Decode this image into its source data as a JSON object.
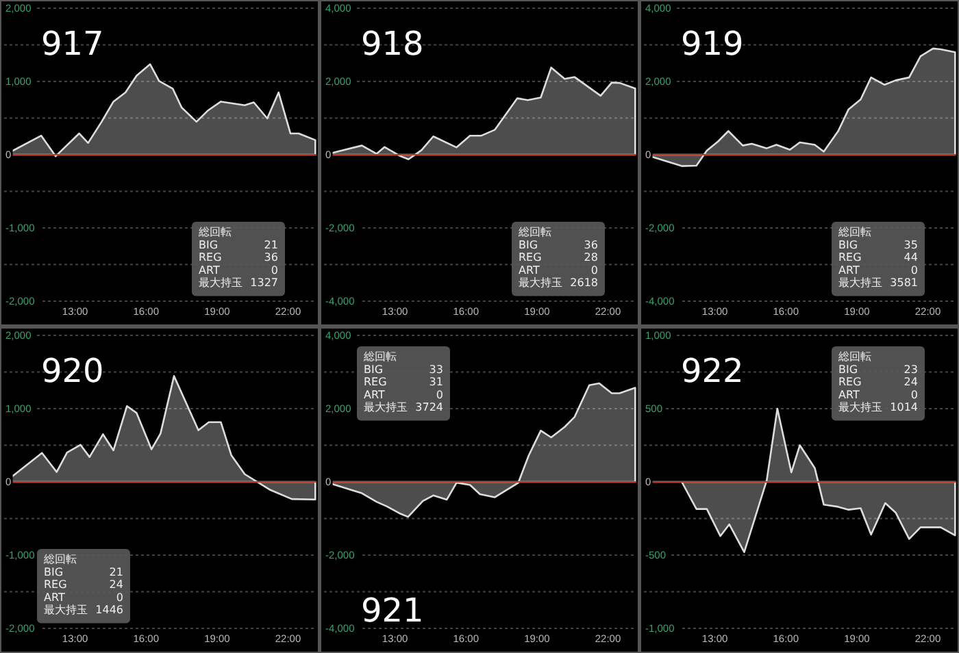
{
  "chart_data": [
    {
      "type": "area",
      "title": "917",
      "x": [
        10.05,
        11.57,
        12.18,
        13.17,
        13.55,
        14.12,
        14.62,
        15.13,
        15.6,
        16.17,
        16.55,
        17.13,
        17.5,
        18.13,
        18.6,
        19.16,
        20.17,
        20.55,
        21.12,
        21.6,
        22.1,
        22.45,
        23.15
      ],
      "values": [
        0,
        260,
        -20,
        290,
        160,
        450,
        725,
        850,
        1080,
        1235,
        1005,
        900,
        645,
        450,
        600,
        725,
        675,
        715,
        495,
        850,
        290,
        290,
        200
      ],
      "color": "#dddddd",
      "xlim": [
        10,
        23.2
      ],
      "xticks": [
        {
          "value": 13,
          "label": "13:00"
        },
        {
          "value": 16,
          "label": "16:00"
        },
        {
          "value": 19,
          "label": "19:00"
        },
        {
          "value": 22,
          "label": "22:00"
        }
      ],
      "ylim": [
        -2000,
        2000
      ],
      "yticks": [
        {
          "value": -2000,
          "label": "-2,000"
        },
        {
          "value": -1500,
          "label": null
        },
        {
          "value": -1000,
          "label": "-1,000"
        },
        {
          "value": -500,
          "label": null
        },
        0,
        {
          "value": 500,
          "label": null
        },
        {
          "value": 1000,
          "label": "1,000"
        },
        {
          "value": 1500,
          "label": null
        },
        {
          "value": 2000,
          "label": "2,000"
        }
      ],
      "grid": true,
      "ref_lines": [
        {
          "axis": "y",
          "value": 0,
          "color": "#c0392b"
        }
      ],
      "annotations": [
        "総回転",
        "BIG 21",
        "REG 36",
        "ART 0",
        "最大持玉 1327"
      ]
    },
    {
      "type": "area",
      "title": "918",
      "x": [
        10.05,
        11.6,
        12.22,
        12.56,
        13.23,
        13.57,
        14.12,
        14.62,
        15.6,
        16.17,
        16.65,
        17.22,
        18.17,
        18.61,
        19.16,
        19.6,
        20.17,
        20.59,
        21.69,
        22.16,
        22.49,
        23.15
      ],
      "values": [
        0,
        250,
        25,
        210,
        -40,
        -125,
        125,
        500,
        200,
        520,
        520,
        680,
        1540,
        1490,
        1560,
        2380,
        2070,
        2120,
        1610,
        1970,
        1960,
        1810
      ],
      "color": "#dddddd",
      "xlim": [
        10,
        23.2
      ],
      "xticks": [
        {
          "value": 13,
          "label": "13:00"
        },
        {
          "value": 16,
          "label": "16:00"
        },
        {
          "value": 19,
          "label": "19:00"
        },
        {
          "value": 22,
          "label": "22:00"
        }
      ],
      "ylim": [
        -4000,
        4000
      ],
      "yticks": [
        {
          "value": -4000,
          "label": "-4,000"
        },
        {
          "value": -3000,
          "label": null
        },
        {
          "value": -2000,
          "label": "-2,000"
        },
        {
          "value": -1000,
          "label": null
        },
        0,
        {
          "value": 1000,
          "label": null
        },
        {
          "value": 2000,
          "label": "2,000"
        },
        {
          "value": 3000,
          "label": null
        },
        {
          "value": 4000,
          "label": "4,000"
        }
      ],
      "grid": true,
      "ref_lines": [
        {
          "axis": "y",
          "value": 0,
          "color": "#c0392b"
        }
      ],
      "annotations": [
        "総回転",
        "BIG 36",
        "REG 28",
        "ART 0",
        "最大持玉 2618"
      ]
    },
    {
      "type": "area",
      "title": "919",
      "x": [
        10.05,
        11.6,
        12.22,
        12.66,
        13.13,
        13.57,
        14.18,
        14.56,
        15.19,
        15.6,
        16.17,
        16.59,
        17.22,
        17.6,
        18.21,
        18.65,
        19.16,
        19.6,
        20.17,
        20.64,
        21.21,
        21.69,
        22.22,
        22.54,
        23.15
      ],
      "values": [
        0,
        -310,
        -300,
        110,
        360,
        645,
        250,
        300,
        175,
        270,
        135,
        335,
        270,
        85,
        645,
        1240,
        1510,
        2110,
        1910,
        2030,
        2110,
        2690,
        2900,
        2880,
        2800
      ],
      "color": "#dddddd",
      "xlim": [
        10,
        23.2
      ],
      "xticks": [
        {
          "value": 13,
          "label": "13:00"
        },
        {
          "value": 16,
          "label": "16:00"
        },
        {
          "value": 19,
          "label": "19:00"
        },
        {
          "value": 22,
          "label": "22:00"
        }
      ],
      "ylim": [
        -4000,
        4000
      ],
      "yticks": [
        {
          "value": -4000,
          "label": "-4,000"
        },
        {
          "value": -3000,
          "label": null
        },
        {
          "value": -2000,
          "label": "-2,000"
        },
        {
          "value": -1000,
          "label": null
        },
        0,
        {
          "value": 1000,
          "label": null
        },
        {
          "value": 2000,
          "label": "2,000"
        },
        {
          "value": 3000,
          "label": null
        },
        {
          "value": 4000,
          "label": "4,000"
        }
      ],
      "grid": true,
      "ref_lines": [
        {
          "axis": "y",
          "value": 0,
          "color": "#c0392b"
        }
      ],
      "annotations": [
        "総回転",
        "BIG 35",
        "REG 44",
        "ART 0",
        "最大持玉 3581"
      ]
    },
    {
      "type": "area",
      "title": "920",
      "x": [
        10.05,
        11.6,
        12.22,
        12.66,
        13.23,
        13.61,
        14.18,
        14.62,
        15.19,
        15.6,
        16.23,
        16.61,
        17.18,
        18.21,
        18.65,
        19.16,
        19.6,
        20.17,
        21.25,
        22.16,
        23.15
      ],
      "values": [
        0,
        395,
        135,
        400,
        505,
        340,
        650,
        430,
        1035,
        940,
        445,
        660,
        1445,
        705,
        815,
        815,
        365,
        105,
        -110,
        -235,
        -240
      ],
      "color": "#dddddd",
      "xlim": [
        10,
        23.2
      ],
      "xticks": [
        {
          "value": 13,
          "label": "13:00"
        },
        {
          "value": 16,
          "label": "16:00"
        },
        {
          "value": 19,
          "label": "19:00"
        },
        {
          "value": 22,
          "label": "22:00"
        }
      ],
      "ylim": [
        -2000,
        2000
      ],
      "yticks": [
        {
          "value": -2000,
          "label": "-2,000"
        },
        {
          "value": -1500,
          "label": null
        },
        {
          "value": -1000,
          "label": "-1,000"
        },
        {
          "value": -500,
          "label": null
        },
        0,
        {
          "value": 500,
          "label": null
        },
        {
          "value": 1000,
          "label": "1,000"
        },
        {
          "value": 1500,
          "label": null
        },
        {
          "value": 2000,
          "label": "2,000"
        }
      ],
      "grid": true,
      "ref_lines": [
        {
          "axis": "y",
          "value": 0,
          "color": "#c0392b"
        }
      ],
      "annotations": [
        "総回転",
        "BIG 21",
        "REG 24",
        "ART 0",
        "最大持玉 1446"
      ]
    },
    {
      "type": "area",
      "title": "921",
      "x": [
        10.05,
        11.6,
        12.22,
        12.66,
        13.23,
        13.55,
        14.18,
        14.62,
        15.19,
        15.6,
        16.17,
        16.59,
        17.22,
        18.21,
        18.65,
        19.16,
        19.6,
        20.17,
        20.59,
        21.21,
        21.63,
        22.16,
        22.49,
        23.15
      ],
      "values": [
        0,
        -310,
        -545,
        -670,
        -870,
        -955,
        -520,
        -370,
        -485,
        -25,
        -85,
        -335,
        -420,
        -25,
        720,
        1400,
        1215,
        1500,
        1775,
        2640,
        2690,
        2420,
        2420,
        2570
      ],
      "color": "#dddddd",
      "xlim": [
        10,
        23.2
      ],
      "xticks": [
        {
          "value": 13,
          "label": "13:00"
        },
        {
          "value": 16,
          "label": "16:00"
        },
        {
          "value": 19,
          "label": "19:00"
        },
        {
          "value": 22,
          "label": "22:00"
        }
      ],
      "ylim": [
        -4000,
        4000
      ],
      "yticks": [
        {
          "value": -4000,
          "label": "-4,000"
        },
        {
          "value": -3000,
          "label": null
        },
        {
          "value": -2000,
          "label": "-2,000"
        },
        {
          "value": -1000,
          "label": null
        },
        0,
        {
          "value": 1000,
          "label": null
        },
        {
          "value": 2000,
          "label": "2,000"
        },
        {
          "value": 3000,
          "label": null
        },
        {
          "value": 4000,
          "label": "4,000"
        }
      ],
      "grid": true,
      "ref_lines": [
        {
          "axis": "y",
          "value": 0,
          "color": "#c0392b"
        }
      ],
      "annotations": [
        "総回転",
        "BIG 33",
        "REG 31",
        "ART 0",
        "最大持玉 3724"
      ]
    },
    {
      "type": "area",
      "title": "922",
      "x": [
        10.05,
        11.6,
        12.22,
        12.66,
        13.23,
        13.61,
        14.24,
        15.19,
        15.64,
        16.23,
        16.59,
        17.22,
        17.6,
        18.21,
        18.65,
        19.16,
        19.6,
        20.2,
        20.64,
        21.21,
        21.69,
        22.54,
        23.15
      ],
      "values": [
        0,
        0,
        -185,
        -185,
        -370,
        -290,
        -480,
        10,
        500,
        65,
        250,
        95,
        -155,
        -170,
        -190,
        -180,
        -360,
        -145,
        -210,
        -390,
        -310,
        -310,
        -365
      ],
      "color": "#dddddd",
      "xlim": [
        10,
        23.2
      ],
      "xticks": [
        {
          "value": 13,
          "label": "13:00"
        },
        {
          "value": 16,
          "label": "16:00"
        },
        {
          "value": 19,
          "label": "19:00"
        },
        {
          "value": 22,
          "label": "22:00"
        }
      ],
      "ylim": [
        -1000,
        1000
      ],
      "yticks": [
        {
          "value": -1000,
          "label": "-1,000"
        },
        {
          "value": -750,
          "label": null
        },
        -500,
        {
          "value": -250,
          "label": null
        },
        0,
        {
          "value": 250,
          "label": null
        },
        500,
        {
          "value": 750,
          "label": null
        },
        {
          "value": 1000,
          "label": "1,000"
        }
      ],
      "grid": true,
      "ref_lines": [
        {
          "axis": "y",
          "value": 0,
          "color": "#c0392b"
        }
      ],
      "annotations": [
        "総回転",
        "BIG 23",
        "REG 24",
        "ART 0",
        "最大持玉 1014"
      ]
    }
  ]
}
